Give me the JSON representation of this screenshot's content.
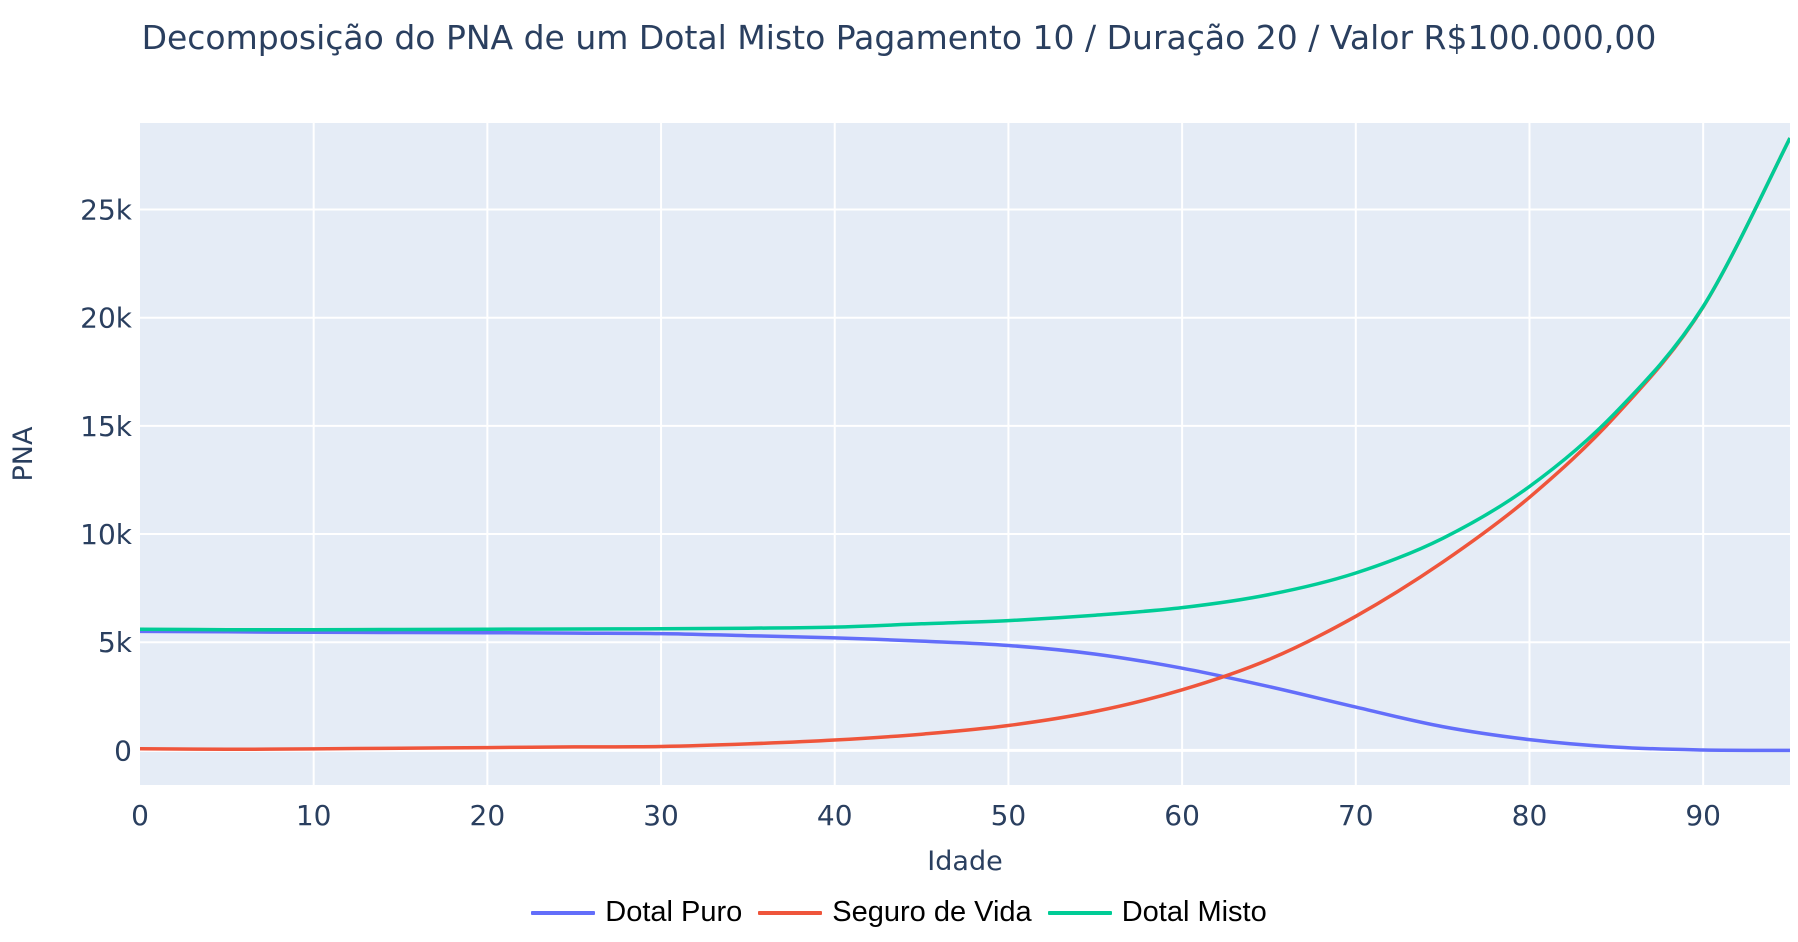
{
  "chart_data": {
    "type": "line",
    "title": "Decomposição do PNA de um Dotal Misto Pagamento 10 / Duração 20 / Valor R$100.000,00",
    "xlabel": "Idade",
    "ylabel": "PNA",
    "xlim": [
      0,
      95
    ],
    "ylim": [
      -1600,
      29000
    ],
    "xticks": [
      0,
      10,
      20,
      30,
      40,
      50,
      60,
      70,
      80,
      90
    ],
    "xtick_labels": [
      "0",
      "10",
      "20",
      "30",
      "40",
      "50",
      "60",
      "70",
      "80",
      "90"
    ],
    "yticks": [
      0,
      5000,
      10000,
      15000,
      20000,
      25000
    ],
    "ytick_labels": [
      "0",
      "5k",
      "10k",
      "15k",
      "20k",
      "25k"
    ],
    "grid": true,
    "legend_position": "bottom-center",
    "background_color": "#e5ecf6",
    "series": [
      {
        "name": "Dotal Puro",
        "color": "#636efa",
        "x": [
          0,
          5,
          10,
          15,
          20,
          25,
          30,
          35,
          40,
          45,
          50,
          55,
          60,
          65,
          70,
          75,
          80,
          85,
          90,
          95
        ],
        "y": [
          5500,
          5480,
          5460,
          5450,
          5440,
          5420,
          5400,
          5300,
          5200,
          5050,
          4850,
          4450,
          3800,
          2950,
          2000,
          1100,
          500,
          150,
          20,
          0
        ]
      },
      {
        "name": "Seguro de Vida",
        "color": "#ef553b",
        "x": [
          0,
          5,
          10,
          15,
          20,
          25,
          30,
          35,
          40,
          45,
          50,
          55,
          60,
          65,
          70,
          75,
          80,
          85,
          90,
          95
        ],
        "y": [
          80,
          50,
          70,
          100,
          130,
          160,
          180,
          300,
          480,
          750,
          1150,
          1800,
          2800,
          4200,
          6200,
          8700,
          11700,
          15500,
          20500,
          28300
        ]
      },
      {
        "name": "Dotal Misto",
        "color": "#00cc96",
        "x": [
          0,
          5,
          10,
          15,
          20,
          25,
          30,
          35,
          40,
          45,
          50,
          55,
          60,
          65,
          70,
          75,
          80,
          85,
          90,
          95
        ],
        "y": [
          5600,
          5580,
          5580,
          5590,
          5600,
          5610,
          5620,
          5650,
          5700,
          5850,
          6000,
          6250,
          6600,
          7200,
          8200,
          9800,
          12200,
          15650,
          20520,
          28300
        ]
      }
    ]
  }
}
